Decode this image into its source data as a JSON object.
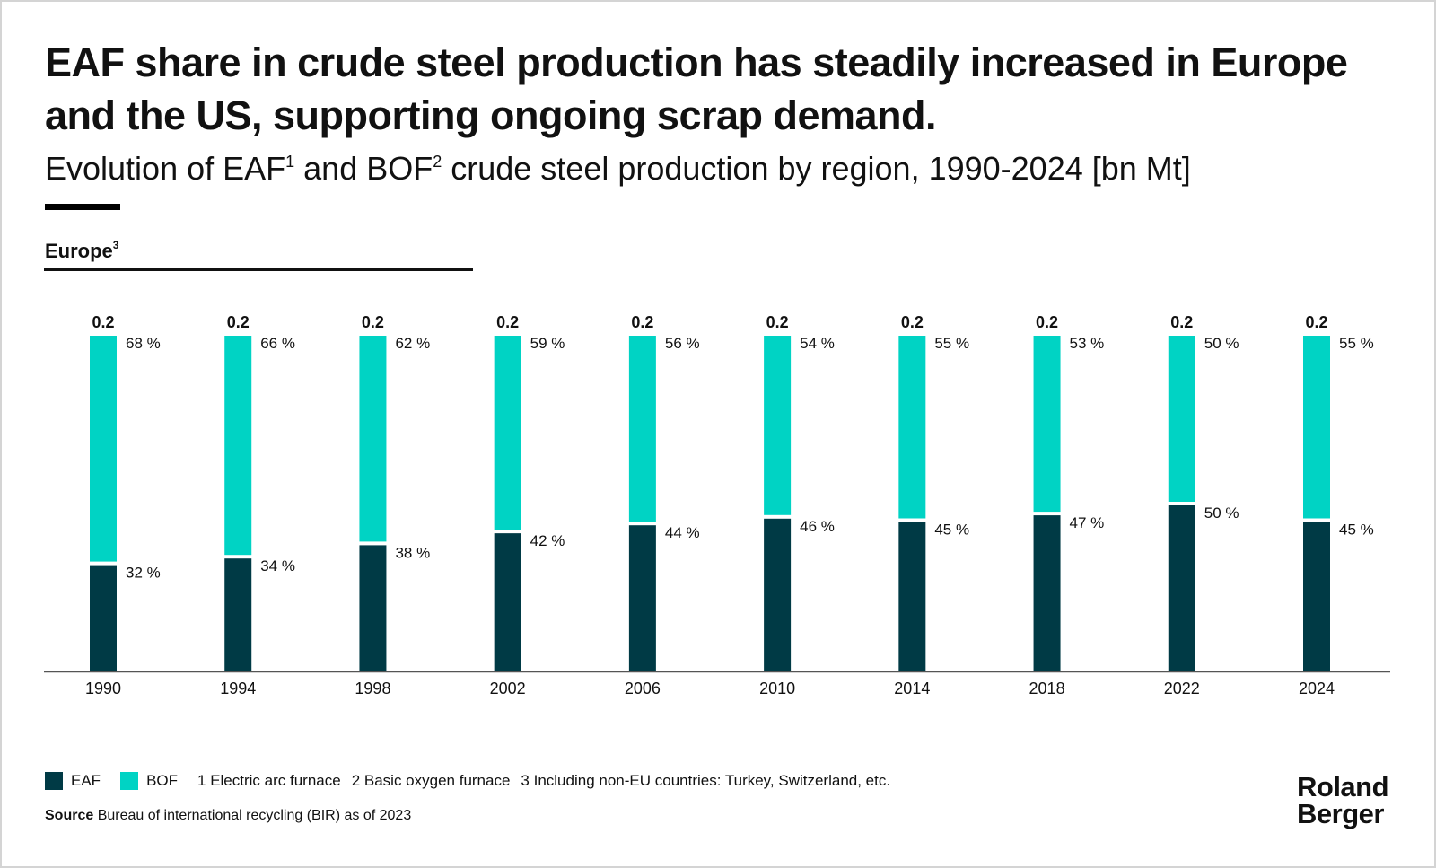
{
  "header": {
    "title": "EAF share in crude steel production has steadily increased in Europe and the US, supporting ongoing scrap demand.",
    "subtitle_text_a": "Evolution of EAF",
    "subtitle_sup_1": "1",
    "subtitle_text_b": " and BOF",
    "subtitle_sup_2": "2",
    "subtitle_text_c": " crude steel production by region, 1990-2024 [bn Mt]"
  },
  "panel": {
    "region": "Europe",
    "region_sup": "3"
  },
  "colors": {
    "eaf": "#003a45",
    "bof": "#00d3c4",
    "axis": "#555555"
  },
  "chart_data": {
    "type": "bar",
    "stacked": true,
    "normalized": true,
    "title": "Europe",
    "xlabel": "",
    "ylabel": "",
    "categories": [
      "1990",
      "1994",
      "1998",
      "2002",
      "2006",
      "2010",
      "2014",
      "2018",
      "2022",
      "2024"
    ],
    "totals": [
      "0.2",
      "0.2",
      "0.2",
      "0.2",
      "0.2",
      "0.2",
      "0.2",
      "0.2",
      "0.2",
      "0.2"
    ],
    "series": [
      {
        "name": "EAF",
        "values": [
          32,
          34,
          38,
          42,
          44,
          46,
          45,
          47,
          50,
          45
        ],
        "labels": [
          "32 %",
          "34 %",
          "38 %",
          "42 %",
          "44 %",
          "46 %",
          "45 %",
          "47 %",
          "50 %",
          "45 %"
        ]
      },
      {
        "name": "BOF",
        "values": [
          68,
          66,
          62,
          59,
          56,
          54,
          55,
          53,
          50,
          55
        ],
        "labels": [
          "68 %",
          "66 %",
          "62 %",
          "59 %",
          "56 %",
          "54 %",
          "55 %",
          "53 %",
          "50 %",
          "55 %"
        ]
      }
    ],
    "ylim": [
      0,
      100
    ]
  },
  "legend": {
    "eaf_label": "EAF",
    "bof_label": "BOF",
    "note_1": "1  Electric arc furnace",
    "note_2": "2  Basic oxygen furnace",
    "note_3": "3  Including non-EU countries: Turkey, Switzerland, etc."
  },
  "footer": {
    "source_label": "Source",
    "source_text": " Bureau of international recycling (BIR) as of 2023",
    "logo_line1": "Roland",
    "logo_line2": "Berger"
  }
}
